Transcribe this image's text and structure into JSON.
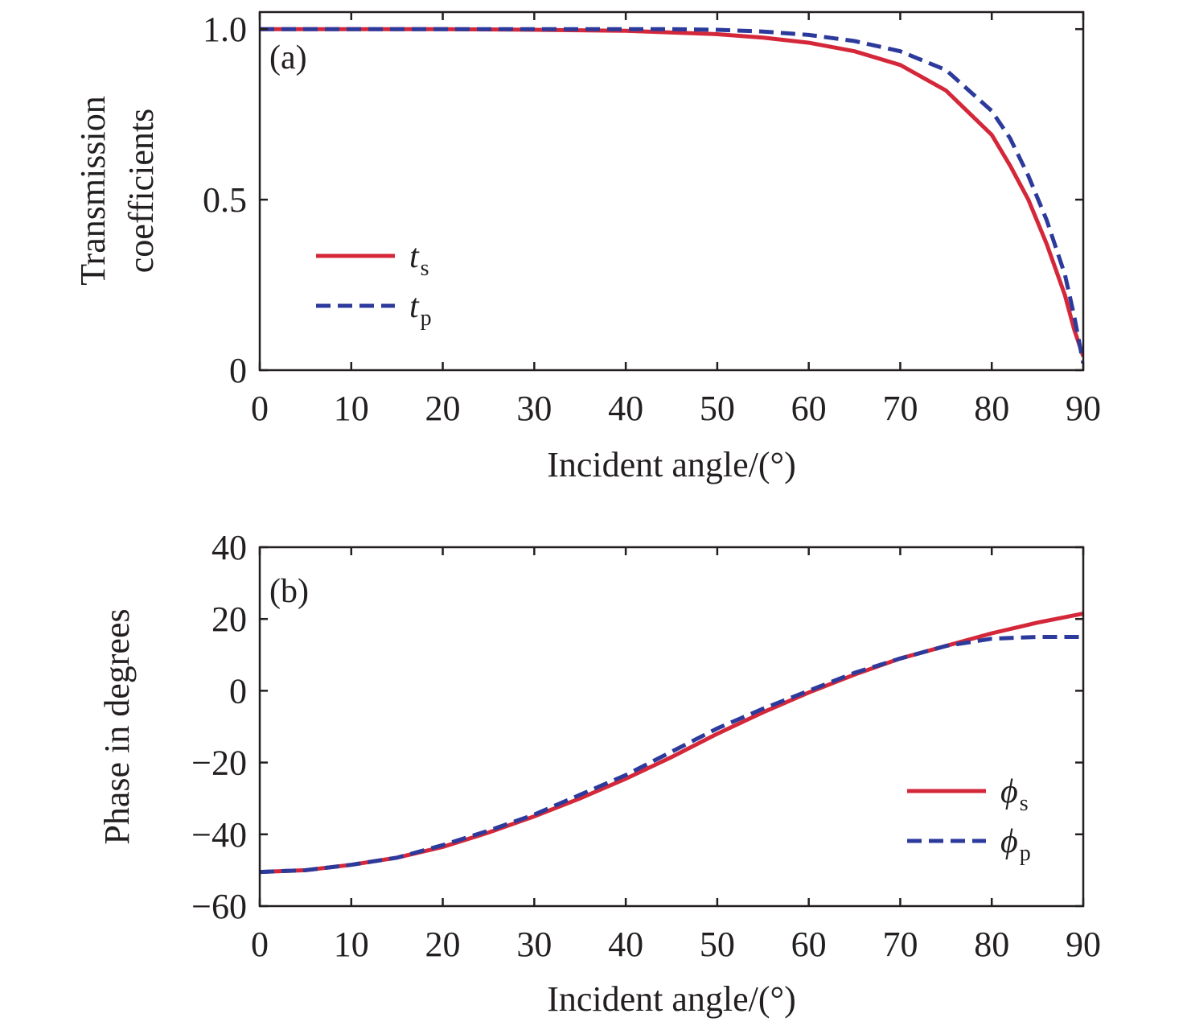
{
  "chart_data": [
    {
      "type": "line",
      "panel_label": "(a)",
      "xlabel": "Incident angle/(°)",
      "ylabel": [
        "Transmission",
        "coefficients"
      ],
      "xlim": [
        0,
        90
      ],
      "ylim": [
        0,
        1.05
      ],
      "xticks": [
        0,
        10,
        20,
        30,
        40,
        50,
        60,
        70,
        80,
        90
      ],
      "xtick_labels": [
        "0",
        "10",
        "20",
        "30",
        "40",
        "50",
        "60",
        "70",
        "80",
        "90"
      ],
      "yticks": [
        0,
        0.5,
        1.0
      ],
      "ytick_labels": [
        "0",
        "0.5",
        "1.0"
      ],
      "legend_position": "middle-left",
      "series": [
        {
          "name": "t",
          "sub": "s",
          "style": "solid",
          "color": "#d4283a",
          "x": [
            0,
            10,
            20,
            30,
            40,
            45,
            50,
            55,
            60,
            65,
            70,
            75,
            80,
            82,
            84,
            86,
            88,
            89,
            89.5,
            90
          ],
          "y": [
            1.0,
            1.0,
            1.0,
            0.998,
            0.995,
            0.99,
            0.985,
            0.975,
            0.96,
            0.935,
            0.895,
            0.82,
            0.69,
            0.6,
            0.5,
            0.37,
            0.22,
            0.12,
            0.08,
            0.04
          ]
        },
        {
          "name": "t",
          "sub": "p",
          "style": "dashed",
          "color": "#2c3a9c",
          "x": [
            0,
            10,
            20,
            30,
            40,
            45,
            50,
            55,
            60,
            65,
            70,
            75,
            80,
            82,
            84,
            86,
            88,
            89,
            89.5,
            90
          ],
          "y": [
            1.0,
            1.0,
            1.0,
            1.0,
            1.0,
            1.0,
            0.998,
            0.993,
            0.983,
            0.965,
            0.935,
            0.88,
            0.76,
            0.68,
            0.57,
            0.44,
            0.28,
            0.16,
            0.09,
            0.02
          ]
        }
      ]
    },
    {
      "type": "line",
      "panel_label": "(b)",
      "xlabel": "Incident angle/(°)",
      "ylabel": [
        "Phase in degrees"
      ],
      "xlim": [
        0,
        90
      ],
      "ylim": [
        -60,
        40
      ],
      "xticks": [
        0,
        10,
        20,
        30,
        40,
        50,
        60,
        70,
        80,
        90
      ],
      "xtick_labels": [
        "0",
        "10",
        "20",
        "30",
        "40",
        "50",
        "60",
        "70",
        "80",
        "90"
      ],
      "yticks": [
        -60,
        -40,
        -20,
        0,
        20,
        40
      ],
      "ytick_labels": [
        "−60",
        "−40",
        "−20",
        "0",
        "20",
        "40"
      ],
      "legend_position": "lower-right",
      "series": [
        {
          "name": "ϕ",
          "sub": "s",
          "style": "solid",
          "color": "#d4283a",
          "x": [
            0,
            5,
            10,
            15,
            20,
            25,
            30,
            35,
            40,
            45,
            50,
            55,
            60,
            65,
            70,
            75,
            80,
            85,
            90
          ],
          "y": [
            -50.5,
            -50,
            -48.5,
            -46.5,
            -43.5,
            -39.5,
            -35,
            -30,
            -24.5,
            -18.5,
            -12,
            -6,
            -0.5,
            4.5,
            9,
            12.5,
            16,
            19,
            21.5
          ]
        },
        {
          "name": "ϕ",
          "sub": "p",
          "style": "dashed",
          "color": "#2c3a9c",
          "x": [
            0,
            5,
            10,
            15,
            20,
            25,
            30,
            35,
            40,
            45,
            50,
            55,
            60,
            65,
            70,
            75,
            80,
            85,
            90
          ],
          "y": [
            -50.5,
            -50,
            -48.5,
            -46.5,
            -43,
            -39,
            -34.5,
            -29,
            -23.5,
            -17,
            -10.5,
            -5,
            0,
            5,
            9,
            12.5,
            14.5,
            15,
            15
          ]
        }
      ]
    }
  ]
}
